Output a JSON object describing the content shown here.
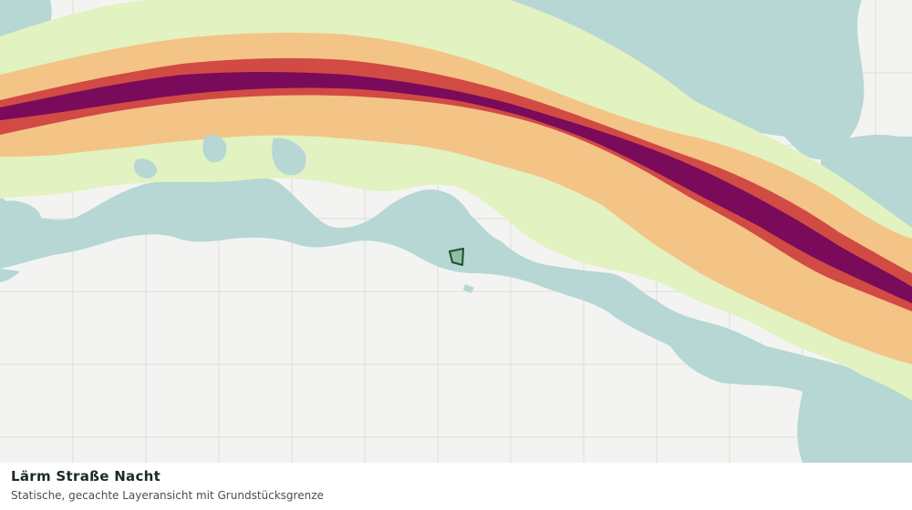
{
  "caption": {
    "title": "Lärm Straße Nacht",
    "subtitle": "Statische, gecachte Layeransicht mit Grundstücksgrenze"
  },
  "map": {
    "layer": "road-noise-night",
    "colors": {
      "background": "#f3f4f2",
      "grid": "#dcdedb",
      "water": "#b6d7d4",
      "noise_low": "#e2f2c0",
      "noise_mid": "#f3c486",
      "noise_high": "#d14a44",
      "noise_very_high": "#7a0a5a",
      "parcel_fill": "#8fbf9f",
      "parcel_stroke": "#1f4e33"
    }
  }
}
